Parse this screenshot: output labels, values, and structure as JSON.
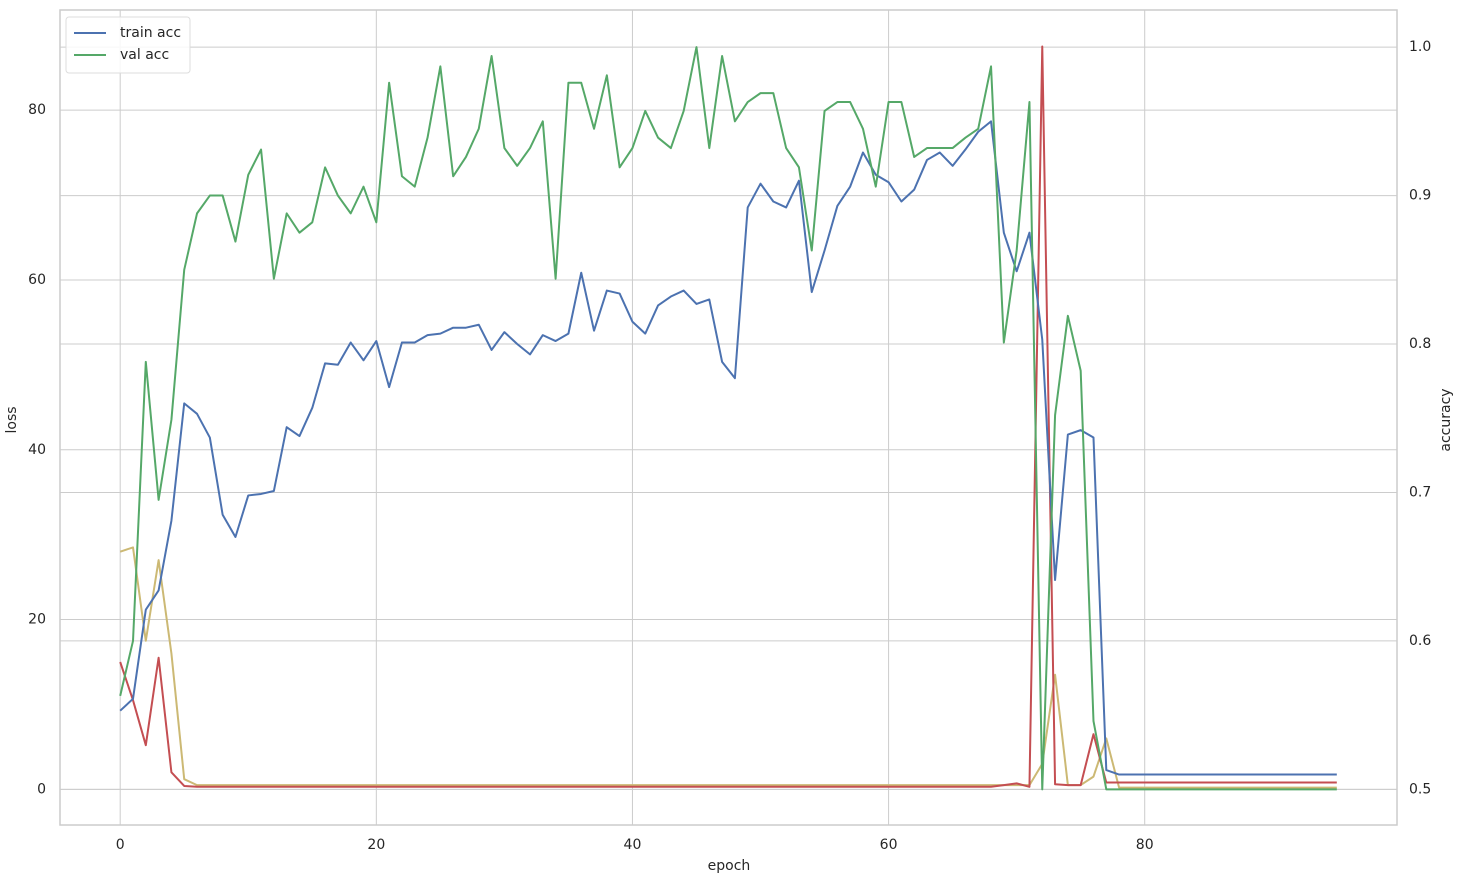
{
  "chart_data": {
    "type": "line",
    "x_label": "epoch",
    "y_label": "loss",
    "y2_label": "accuracy",
    "x": [
      0,
      1,
      2,
      3,
      4,
      5,
      6,
      7,
      8,
      9,
      10,
      11,
      12,
      13,
      14,
      15,
      16,
      17,
      18,
      19,
      20,
      21,
      22,
      23,
      24,
      25,
      26,
      27,
      28,
      29,
      30,
      31,
      32,
      33,
      34,
      35,
      36,
      37,
      38,
      39,
      40,
      41,
      42,
      43,
      44,
      45,
      46,
      47,
      48,
      49,
      50,
      51,
      52,
      53,
      54,
      55,
      56,
      57,
      58,
      59,
      60,
      61,
      62,
      63,
      64,
      65,
      66,
      67,
      68,
      69,
      70,
      71,
      72,
      73,
      74,
      75,
      76,
      77,
      78,
      79,
      80,
      81,
      82,
      83,
      84,
      85,
      86,
      87,
      88,
      89,
      90,
      91,
      92,
      93,
      94,
      95
    ],
    "series": [
      {
        "color": "#ccb974",
        "values": [
          28,
          28.5,
          17.5,
          27,
          16,
          1.2,
          0.5,
          0.5,
          0.5,
          0.5,
          0.5,
          0.5,
          0.5,
          0.5,
          0.5,
          0.5,
          0.5,
          0.5,
          0.5,
          0.5,
          0.5,
          0.5,
          0.5,
          0.5,
          0.5,
          0.5,
          0.5,
          0.5,
          0.5,
          0.5,
          0.5,
          0.5,
          0.5,
          0.5,
          0.5,
          0.5,
          0.5,
          0.5,
          0.5,
          0.5,
          0.5,
          0.5,
          0.5,
          0.5,
          0.5,
          0.5,
          0.5,
          0.5,
          0.5,
          0.5,
          0.5,
          0.5,
          0.5,
          0.5,
          0.5,
          0.5,
          0.5,
          0.5,
          0.5,
          0.5,
          0.5,
          0.5,
          0.5,
          0.5,
          0.5,
          0.5,
          0.5,
          0.5,
          0.5,
          0.5,
          0.5,
          0.5,
          3,
          13.5,
          0.5,
          0.5,
          1.5,
          6,
          0.2,
          0.2,
          0.2,
          0.2,
          0.2,
          0.2,
          0.2,
          0.2,
          0.2,
          0.2,
          0.2,
          0.2,
          0.2,
          0.2,
          0.2,
          0.2,
          0.2,
          0.2
        ]
      },
      {
        "color": "#c44e52",
        "values": [
          15,
          10.5,
          5.2,
          15.5,
          2,
          0.4,
          0.3,
          0.3,
          0.3,
          0.3,
          0.3,
          0.3,
          0.3,
          0.3,
          0.3,
          0.3,
          0.3,
          0.3,
          0.3,
          0.3,
          0.3,
          0.3,
          0.3,
          0.3,
          0.3,
          0.3,
          0.3,
          0.3,
          0.3,
          0.3,
          0.3,
          0.3,
          0.3,
          0.3,
          0.3,
          0.3,
          0.3,
          0.3,
          0.3,
          0.3,
          0.3,
          0.3,
          0.3,
          0.3,
          0.3,
          0.3,
          0.3,
          0.3,
          0.3,
          0.3,
          0.3,
          0.3,
          0.3,
          0.3,
          0.3,
          0.3,
          0.3,
          0.3,
          0.3,
          0.3,
          0.3,
          0.3,
          0.3,
          0.3,
          0.3,
          0.3,
          0.3,
          0.3,
          0.3,
          0.5,
          0.7,
          0.3,
          87.5,
          0.6,
          0.5,
          0.5,
          6.5,
          0.8,
          0.8,
          0.8,
          0.8,
          0.8,
          0.8,
          0.8,
          0.8,
          0.8,
          0.8,
          0.8,
          0.8,
          0.8,
          0.8,
          0.8,
          0.8,
          0.8,
          0.8,
          0.8
        ]
      },
      {
        "name": "train acc",
        "color": "#4c72b0",
        "axis": "y2",
        "values": [
          0.553,
          0.561,
          0.621,
          0.634,
          0.681,
          0.76,
          0.753,
          0.737,
          0.685,
          0.67,
          0.698,
          0.699,
          0.701,
          0.744,
          0.738,
          0.757,
          0.787,
          0.786,
          0.801,
          0.789,
          0.802,
          0.771,
          0.801,
          0.801,
          0.806,
          0.807,
          0.811,
          0.811,
          0.813,
          0.796,
          0.808,
          0.8,
          0.793,
          0.806,
          0.802,
          0.807,
          0.848,
          0.809,
          0.836,
          0.834,
          0.815,
          0.807,
          0.826,
          0.832,
          0.836,
          0.827,
          0.83,
          0.788,
          0.777,
          0.892,
          0.908,
          0.896,
          0.892,
          0.91,
          0.835,
          0.863,
          0.893,
          0.906,
          0.929,
          0.914,
          0.909,
          0.896,
          0.904,
          0.924,
          0.929,
          0.92,
          0.931,
          0.943,
          0.95,
          0.875,
          0.849,
          0.875,
          0.803,
          0.641,
          0.739,
          0.742,
          0.737,
          0.513,
          0.51,
          0.51,
          0.51,
          0.51,
          0.51,
          0.51,
          0.51,
          0.51,
          0.51,
          0.51,
          0.51,
          0.51,
          0.51,
          0.51,
          0.51,
          0.51,
          0.51,
          0.51
        ]
      },
      {
        "name": "val acc",
        "color": "#55a868",
        "axis": "y2",
        "values": [
          0.563,
          0.6,
          0.788,
          0.695,
          0.749,
          0.85,
          0.888,
          0.9,
          0.9,
          0.869,
          0.914,
          0.931,
          0.844,
          0.888,
          0.875,
          0.882,
          0.919,
          0.9,
          0.888,
          0.906,
          0.882,
          0.976,
          0.913,
          0.906,
          0.939,
          0.987,
          0.913,
          0.926,
          0.945,
          0.994,
          0.932,
          0.92,
          0.932,
          0.95,
          0.844,
          0.976,
          0.976,
          0.945,
          0.981,
          0.919,
          0.932,
          0.957,
          0.939,
          0.932,
          0.957,
          1.0,
          0.932,
          0.994,
          0.95,
          0.963,
          0.969,
          0.969,
          0.932,
          0.919,
          0.863,
          0.957,
          0.963,
          0.963,
          0.945,
          0.906,
          0.963,
          0.963,
          0.926,
          0.932,
          0.932,
          0.932,
          0.939,
          0.945,
          0.987,
          0.801,
          0.863,
          0.963,
          0.5,
          0.752,
          0.819,
          0.782,
          0.546,
          0.5,
          0.5,
          0.5,
          0.5,
          0.5,
          0.5,
          0.5,
          0.5,
          0.5,
          0.5,
          0.5,
          0.5,
          0.5,
          0.5,
          0.5,
          0.5,
          0.5,
          0.5,
          0.5
        ]
      }
    ],
    "xlim": [
      -4.7,
      99.7
    ],
    "ylim": [
      -4.2,
      91.8
    ],
    "y2lim": [
      0.476,
      1.025
    ],
    "xticks": [
      0,
      20,
      40,
      60,
      80
    ],
    "yticks": [
      0,
      20,
      40,
      60,
      80
    ],
    "y2ticks": [
      0.5,
      0.6,
      0.7,
      0.8,
      0.9,
      {
        "value": 1,
        "label": "1.0"
      }
    ],
    "grid": true,
    "legend": "upper left"
  }
}
